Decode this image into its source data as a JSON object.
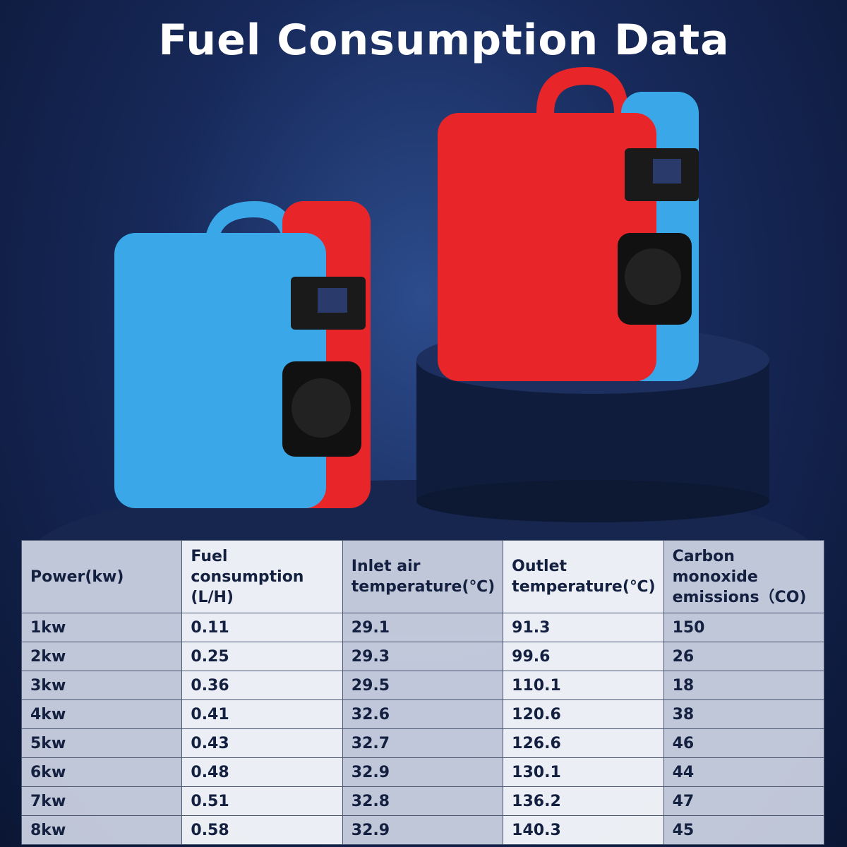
{
  "header": {
    "title": "Fuel Consumption Data"
  },
  "table": {
    "columns": [
      "Power(kw)",
      "Fuel consumption (L/H)",
      "Inlet air temperature(℃)",
      "Outlet temperature(℃)",
      "Carbon monoxide emissions（CO)"
    ],
    "rows": [
      [
        "1kw",
        "0.11",
        "29.1",
        "91.3",
        "150"
      ],
      [
        "2kw",
        "0.25",
        "29.3",
        "99.6",
        "26"
      ],
      [
        "3kw",
        "0.36",
        "29.5",
        "110.1",
        "18"
      ],
      [
        "4kw",
        "0.41",
        "32.6",
        "120.6",
        "38"
      ],
      [
        "5kw",
        "0.43",
        "32.7",
        "126.6",
        "46"
      ],
      [
        "6kw",
        "0.48",
        "32.9",
        "130.1",
        "44"
      ],
      [
        "7kw",
        "0.51",
        "32.8",
        "136.2",
        "47"
      ],
      [
        "8kw",
        "0.58",
        "32.9",
        "140.3",
        "45"
      ]
    ]
  }
}
